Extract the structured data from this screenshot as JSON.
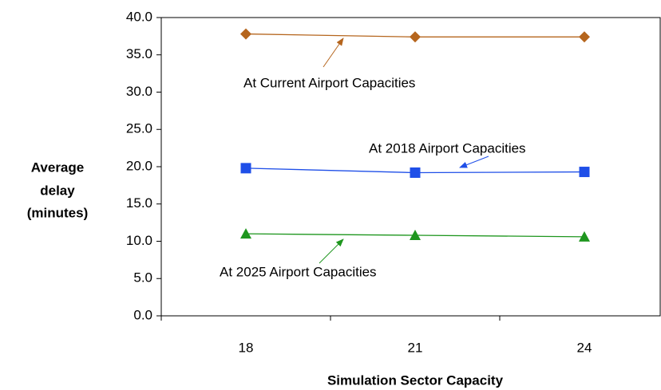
{
  "chart_data": {
    "type": "line",
    "x_label": "Simulation Sector Capacity",
    "y_label": [
      "Average",
      "delay",
      "(minutes)"
    ],
    "categories": [
      "18",
      "21",
      "24"
    ],
    "series": [
      {
        "name": "At Current Airport Capacities",
        "color": "#b5651d",
        "marker": "diamond",
        "values": [
          37.8,
          37.4,
          37.4
        ]
      },
      {
        "name": "At 2018 Airport Capacities",
        "color": "#1f4fe8",
        "marker": "square",
        "values": [
          19.8,
          19.2,
          19.3
        ]
      },
      {
        "name": "At 2025 Airport Capacities",
        "color": "#1e961e",
        "marker": "triangle",
        "values": [
          11.0,
          10.8,
          10.6
        ]
      }
    ],
    "ylim": [
      0,
      40
    ],
    "yticks": [
      {
        "value": 0,
        "label": "0.0"
      },
      {
        "value": 5,
        "label": "5.0"
      },
      {
        "value": 10,
        "label": "10.0"
      },
      {
        "value": 15,
        "label": "15.0"
      },
      {
        "value": 20,
        "label": "20.0"
      },
      {
        "value": 25,
        "label": "25.0"
      },
      {
        "value": 30,
        "label": "30.0"
      },
      {
        "value": 35,
        "label": "35.0"
      },
      {
        "value": 40,
        "label": "40.0"
      }
    ],
    "grid": false
  }
}
